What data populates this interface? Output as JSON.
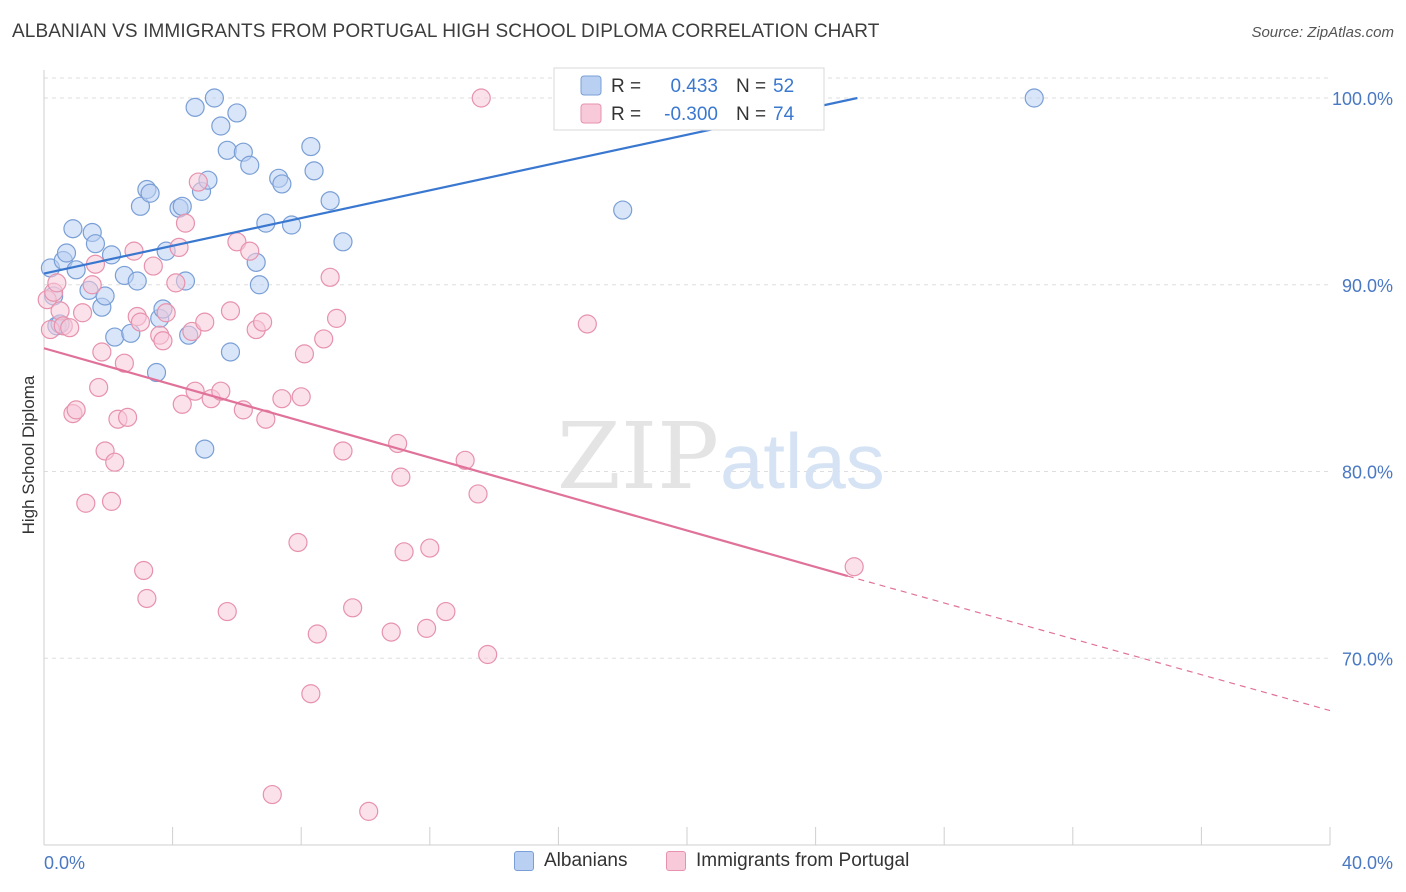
{
  "title": "ALBANIAN VS IMMIGRANTS FROM PORTUGAL HIGH SCHOOL DIPLOMA CORRELATION CHART",
  "source": "Source: ZipAtlas.com",
  "watermark": {
    "zip": "ZIP",
    "atlas": "atlas"
  },
  "colors": {
    "albanian_fill": "#b9d0f3",
    "albanian_stroke": "#7a9fd6",
    "albanian_line": "#3a78d0",
    "portugal_fill": "#f8c9d8",
    "portugal_stroke": "#e792ad",
    "portugal_line": "#e0729a",
    "tick_label": "#4a78c2",
    "grid": "#dedede"
  },
  "legend_top": [
    {
      "r_label": "R =",
      "r_value": "0.433",
      "n_label": "N =",
      "n_value": "52"
    },
    {
      "r_label": "R =",
      "r_value": "-0.300",
      "n_label": "N =",
      "n_value": "74"
    }
  ],
  "chart_data": {
    "type": "scatter",
    "ylabel": "High School Diploma",
    "xlim": [
      0,
      40
    ],
    "ylim": [
      60,
      101.5
    ],
    "x_tick_labels": [
      "0.0%",
      "40.0%"
    ],
    "y_ticks": [
      {
        "value": 100,
        "label": "100.0%"
      },
      {
        "value": 90,
        "label": "90.0%"
      },
      {
        "value": 80,
        "label": "80.0%"
      },
      {
        "value": 70,
        "label": "70.0%"
      }
    ],
    "legend_placement": "bottom",
    "series": [
      {
        "name": "Albanians",
        "r": 0.433,
        "n": 52,
        "trend": {
          "x0": 0,
          "y0": 90.6,
          "x1": 25.3,
          "y1": 100.0
        },
        "points": [
          [
            0.2,
            90.9
          ],
          [
            0.3,
            89.4
          ],
          [
            0.4,
            87.8
          ],
          [
            0.6,
            91.3
          ],
          [
            0.7,
            91.7
          ],
          [
            0.9,
            93.0
          ],
          [
            1.0,
            90.8
          ],
          [
            1.4,
            89.7
          ],
          [
            1.5,
            92.8
          ],
          [
            1.6,
            92.2
          ],
          [
            1.8,
            88.8
          ],
          [
            1.9,
            89.4
          ],
          [
            2.1,
            91.6
          ],
          [
            2.2,
            87.2
          ],
          [
            2.5,
            90.5
          ],
          [
            2.7,
            87.4
          ],
          [
            2.9,
            90.2
          ],
          [
            3.0,
            94.2
          ],
          [
            3.2,
            95.1
          ],
          [
            3.3,
            94.9
          ],
          [
            3.5,
            85.3
          ],
          [
            3.6,
            88.2
          ],
          [
            3.7,
            88.7
          ],
          [
            3.8,
            91.8
          ],
          [
            4.2,
            94.1
          ],
          [
            4.3,
            94.2
          ],
          [
            4.5,
            87.3
          ],
          [
            4.4,
            90.2
          ],
          [
            4.7,
            99.5
          ],
          [
            4.9,
            95.0
          ],
          [
            5.0,
            81.2
          ],
          [
            5.1,
            95.6
          ],
          [
            5.3,
            100.0
          ],
          [
            5.5,
            98.5
          ],
          [
            5.7,
            97.2
          ],
          [
            5.8,
            86.4
          ],
          [
            6.0,
            99.2
          ],
          [
            6.2,
            97.1
          ],
          [
            6.4,
            96.4
          ],
          [
            6.6,
            91.2
          ],
          [
            6.7,
            90.0
          ],
          [
            6.9,
            93.3
          ],
          [
            7.3,
            95.7
          ],
          [
            7.4,
            95.4
          ],
          [
            7.7,
            93.2
          ],
          [
            8.3,
            97.4
          ],
          [
            8.4,
            96.1
          ],
          [
            8.9,
            94.5
          ],
          [
            9.3,
            92.3
          ],
          [
            18.0,
            94.0
          ],
          [
            30.8,
            100.0
          ],
          [
            0.5,
            87.9
          ]
        ]
      },
      {
        "name": "Immigrants from Portugal",
        "r": -0.3,
        "n": 74,
        "trend": {
          "x0": 0,
          "y0": 86.6,
          "x1": 25.0,
          "y1": 74.4,
          "dash_x1": 40,
          "dash_y1": 67.2
        },
        "points": [
          [
            0.1,
            89.2
          ],
          [
            0.2,
            87.6
          ],
          [
            0.3,
            89.6
          ],
          [
            0.4,
            90.1
          ],
          [
            0.5,
            88.6
          ],
          [
            0.6,
            87.8
          ],
          [
            0.8,
            87.7
          ],
          [
            0.9,
            83.1
          ],
          [
            1.0,
            83.3
          ],
          [
            1.2,
            88.5
          ],
          [
            1.3,
            78.3
          ],
          [
            1.5,
            90.0
          ],
          [
            1.6,
            91.1
          ],
          [
            1.7,
            84.5
          ],
          [
            1.8,
            86.4
          ],
          [
            1.9,
            81.1
          ],
          [
            2.1,
            78.4
          ],
          [
            2.2,
            80.5
          ],
          [
            2.3,
            82.8
          ],
          [
            2.5,
            85.8
          ],
          [
            2.6,
            82.9
          ],
          [
            2.8,
            91.8
          ],
          [
            2.9,
            88.3
          ],
          [
            3.0,
            88.0
          ],
          [
            3.1,
            74.7
          ],
          [
            3.2,
            73.2
          ],
          [
            3.4,
            91.0
          ],
          [
            3.6,
            87.3
          ],
          [
            3.7,
            87.0
          ],
          [
            3.8,
            88.5
          ],
          [
            4.1,
            90.1
          ],
          [
            4.2,
            92.0
          ],
          [
            4.3,
            83.6
          ],
          [
            4.4,
            93.3
          ],
          [
            4.6,
            87.5
          ],
          [
            4.7,
            84.3
          ],
          [
            4.8,
            95.5
          ],
          [
            5.0,
            88.0
          ],
          [
            5.2,
            83.9
          ],
          [
            5.5,
            84.3
          ],
          [
            5.7,
            72.5
          ],
          [
            5.8,
            88.6
          ],
          [
            6.0,
            92.3
          ],
          [
            6.2,
            83.3
          ],
          [
            6.4,
            91.8
          ],
          [
            6.6,
            87.6
          ],
          [
            6.8,
            88.0
          ],
          [
            6.9,
            82.8
          ],
          [
            7.1,
            62.7
          ],
          [
            7.4,
            83.9
          ],
          [
            7.9,
            76.2
          ],
          [
            8.0,
            84.0
          ],
          [
            8.1,
            86.3
          ],
          [
            8.3,
            68.1
          ],
          [
            8.5,
            71.3
          ],
          [
            8.7,
            87.1
          ],
          [
            8.9,
            90.4
          ],
          [
            9.1,
            88.2
          ],
          [
            9.3,
            81.1
          ],
          [
            9.6,
            72.7
          ],
          [
            10.1,
            61.8
          ],
          [
            10.8,
            71.4
          ],
          [
            11.0,
            81.5
          ],
          [
            11.1,
            79.7
          ],
          [
            11.2,
            75.7
          ],
          [
            11.9,
            71.6
          ],
          [
            12.0,
            75.9
          ],
          [
            12.5,
            72.5
          ],
          [
            13.1,
            80.6
          ],
          [
            13.5,
            78.8
          ],
          [
            13.6,
            100.0
          ],
          [
            13.8,
            70.2
          ],
          [
            16.9,
            87.9
          ],
          [
            25.2,
            74.9
          ]
        ]
      }
    ]
  }
}
